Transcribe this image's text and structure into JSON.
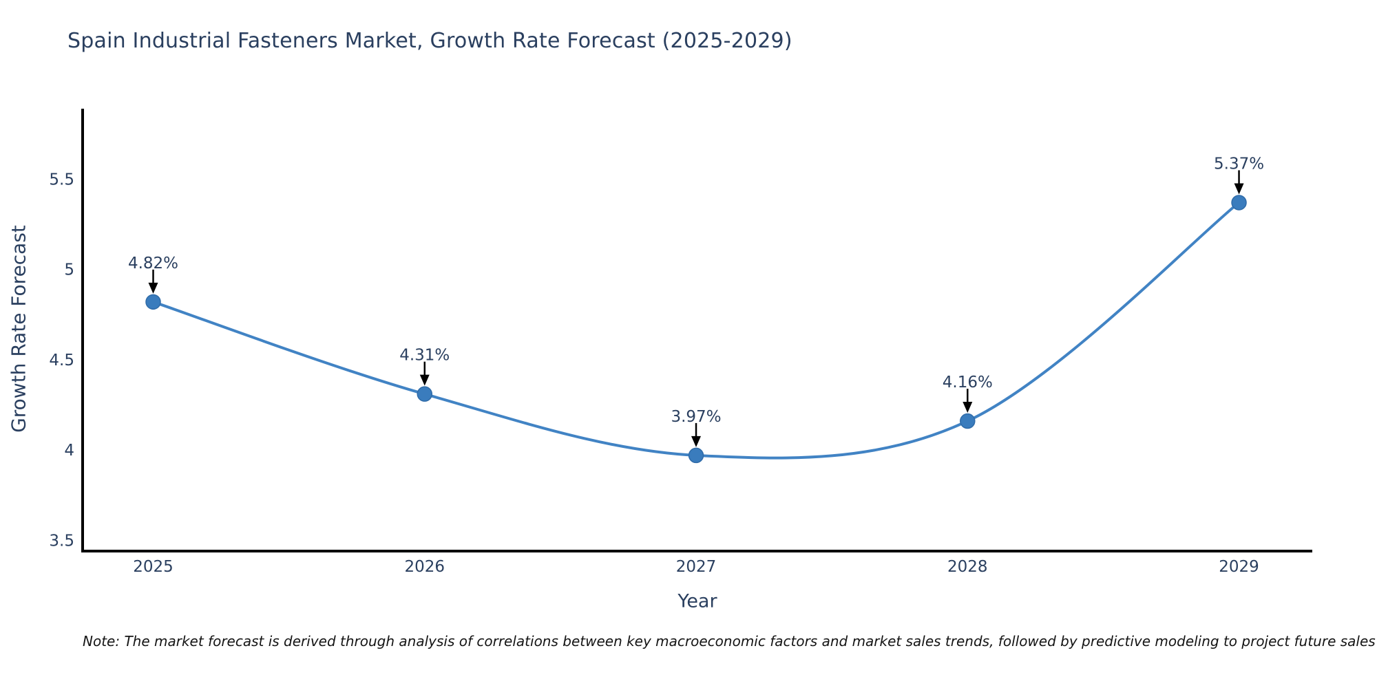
{
  "title": "Spain Industrial Fasteners Market, Growth Rate Forecast (2025-2029)",
  "note": "Note: The market forecast is derived through analysis of correlations between key macroeconomic factors and market sales trends, followed by predictive modeling to project future sales",
  "colors": {
    "text": "#2a3f5f",
    "note_text": "#141414",
    "axis_line": "#000000",
    "series_line": "#4183c4",
    "marker_fill": "#3a7cbd",
    "marker_edge": "#2f6ba8",
    "annotation_arrow": "#000000",
    "background": "#ffffff"
  },
  "chart_data": {
    "type": "line",
    "title": "Spain Industrial Fasteners Market, Growth Rate Forecast (2025-2029)",
    "x": [
      2025,
      2026,
      2027,
      2028,
      2029
    ],
    "values": [
      4.82,
      4.31,
      3.97,
      4.16,
      5.37
    ],
    "point_labels": [
      "4.82%",
      "4.31%",
      "3.97%",
      "4.16%",
      "5.37%"
    ],
    "series_name": "Growth Rate Forecast",
    "xlabel": "Year",
    "ylabel": "Growth Rate Forecast",
    "xticks": {
      "values": [
        2025,
        2026,
        2027,
        2028,
        2029
      ],
      "labels": [
        "2025",
        "2026",
        "2027",
        "2028",
        "2029"
      ]
    },
    "yticks": {
      "values": [
        3.5,
        4,
        4.5,
        5,
        5.5
      ],
      "labels": [
        "3.5",
        "4",
        "4.5",
        "5",
        "5.5"
      ]
    },
    "xlim": [
      2024.74,
      2029.27
    ],
    "ylim": [
      3.44,
      5.89
    ],
    "line_shape": "spline",
    "markers": true,
    "annotations_style": "value-label-with-down-arrow",
    "grid": false,
    "legend": false
  }
}
